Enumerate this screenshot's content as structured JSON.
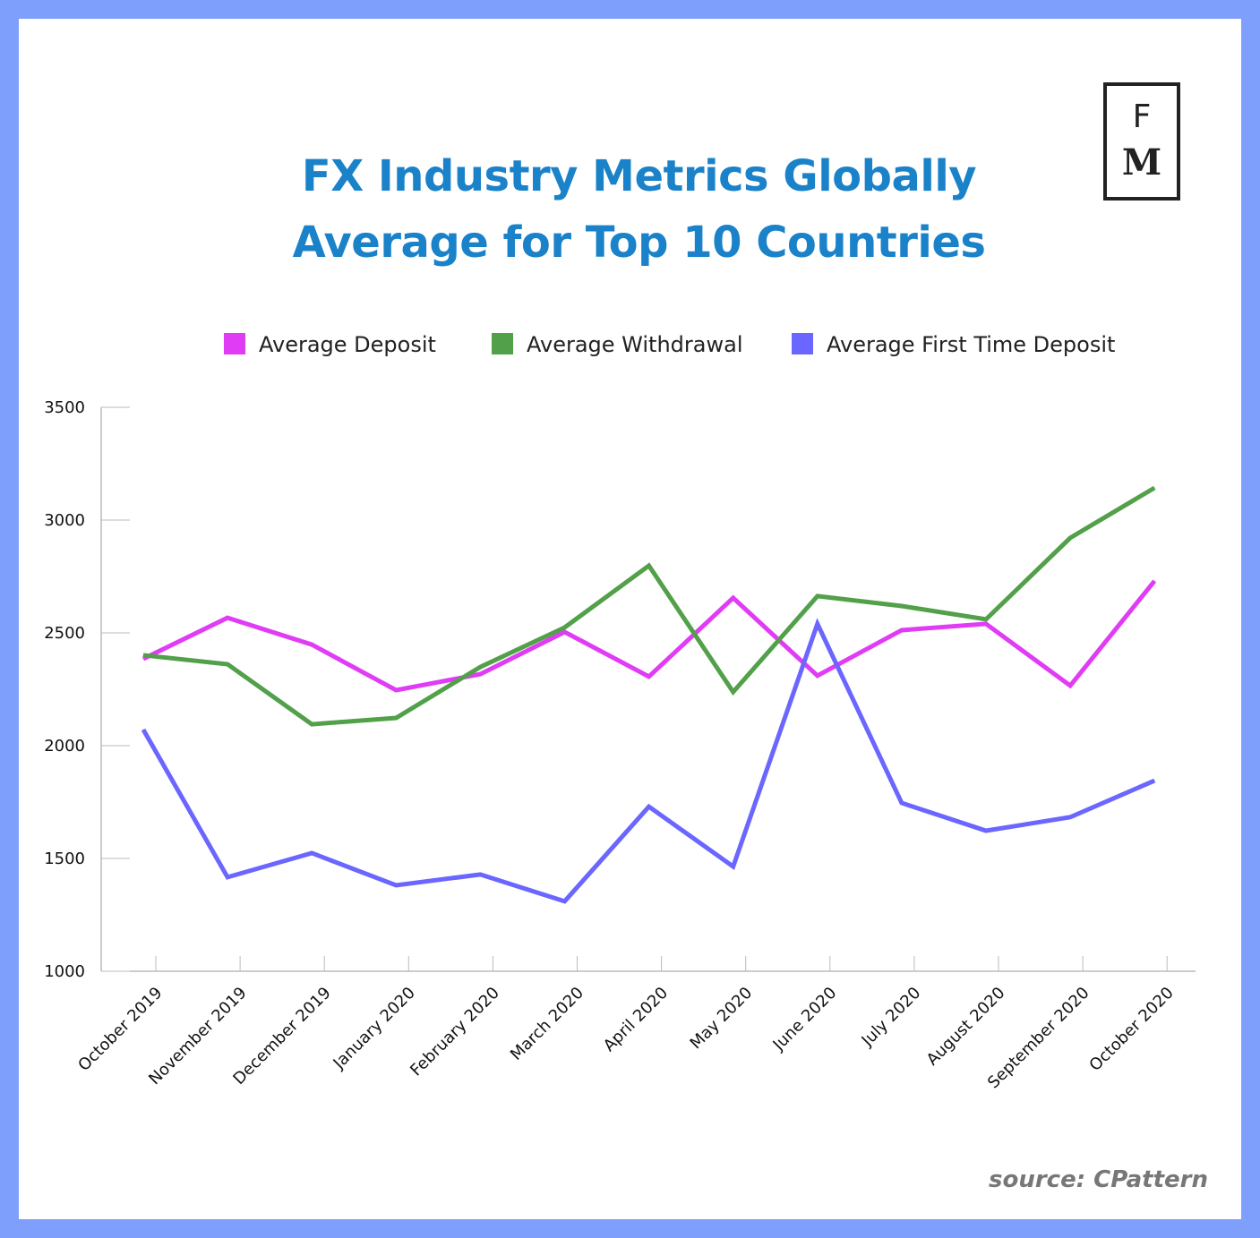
{
  "chart_data": {
    "type": "line",
    "title": "FX Industry Metrics Globally",
    "subtitle": "Average for Top 10 Countries",
    "xlabel": "",
    "ylabel": "",
    "ylim": [
      1000,
      3500
    ],
    "yticks": [
      "1000",
      "1500",
      "2000",
      "2500",
      "3000",
      "3500"
    ],
    "categories": [
      "October 2019",
      "November 2019",
      "December 2019",
      "January 2020",
      "February 2020",
      "March 2020",
      "April 2020",
      "May 2020",
      "June 2020",
      "July 2020",
      "August 2020",
      "September 2020",
      "October 2020"
    ],
    "legend_position": "top",
    "grid": false,
    "series": [
      {
        "name": "Average Deposit",
        "color": "#e03cf5",
        "values": [
          2385,
          2567,
          2448,
          2246,
          2317,
          2504,
          2306,
          2655,
          2310,
          2512,
          2540,
          2266,
          2730
        ]
      },
      {
        "name": "Average Withdrawal",
        "color": "#52a04a",
        "values": [
          2401,
          2361,
          2095,
          2123,
          2349,
          2524,
          2798,
          2238,
          2663,
          2619,
          2560,
          2921,
          3143
        ]
      },
      {
        "name": "Average First Time Deposit",
        "color": "#6a66ff",
        "values": [
          2071,
          1417,
          1524,
          1381,
          1429,
          1310,
          1730,
          1464,
          2540,
          1746,
          1623,
          1683,
          1845
        ]
      }
    ]
  },
  "logo": {
    "top": "F",
    "bottom": "M"
  },
  "source": "source: CPattern"
}
